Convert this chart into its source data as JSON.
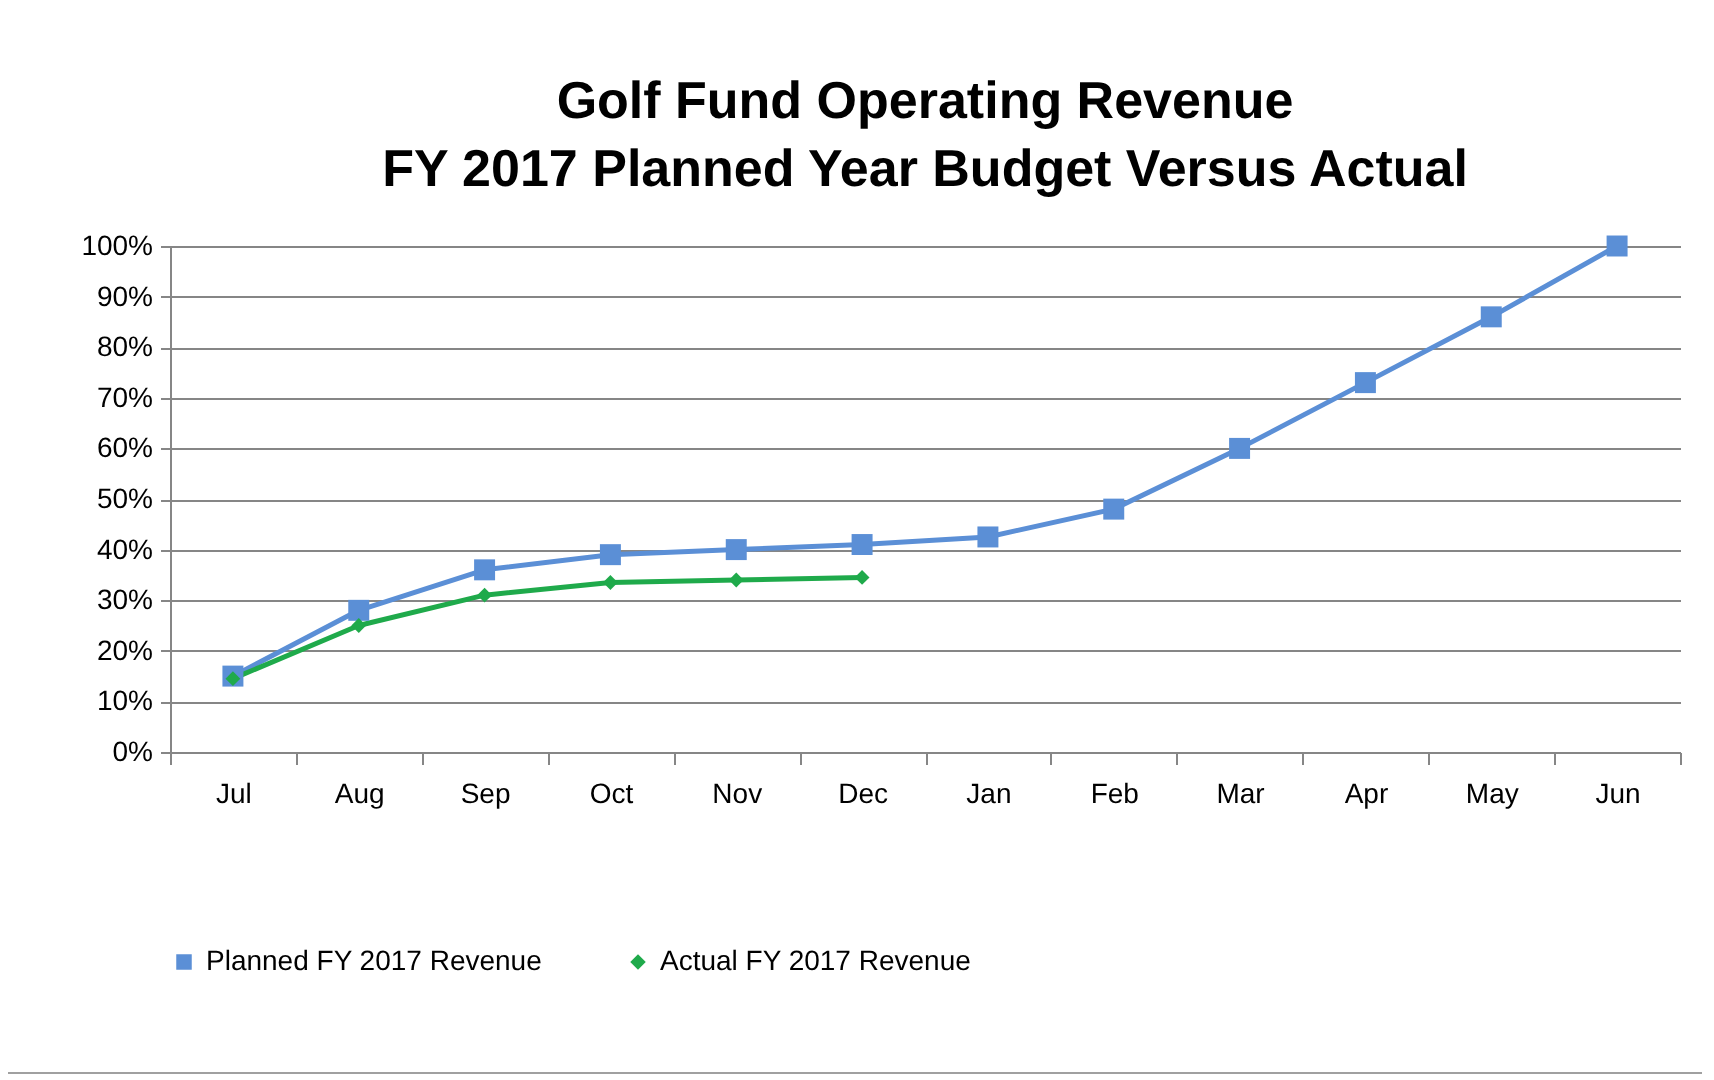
{
  "chart_data": {
    "type": "line",
    "title": [
      "Golf Fund Operating Revenue",
      "FY 2017 Planned Year Budget Versus Actual"
    ],
    "categories": [
      "Jul",
      "Aug",
      "Sep",
      "Oct",
      "Nov",
      "Dec",
      "Jan",
      "Feb",
      "Mar",
      "Apr",
      "May",
      "Jun"
    ],
    "series": [
      {
        "name": "Planned FY 2017 Revenue",
        "color": "#5b8fd6",
        "marker": "square",
        "values": [
          15,
          28,
          36,
          39,
          40,
          41,
          42.5,
          48,
          60,
          73,
          86,
          100
        ]
      },
      {
        "name": "Actual FY 2017 Revenue",
        "color": "#1faa4b",
        "marker": "diamond",
        "values": [
          14.5,
          25,
          31,
          33.5,
          34,
          34.5,
          null,
          null,
          null,
          null,
          null,
          null
        ]
      }
    ],
    "ylim": [
      0,
      100
    ],
    "yticks": [
      {
        "value": 0,
        "label": "0%"
      },
      {
        "value": 10,
        "label": "10%"
      },
      {
        "value": 20,
        "label": "20%"
      },
      {
        "value": 30,
        "label": "30%"
      },
      {
        "value": 40,
        "label": "40%"
      },
      {
        "value": 50,
        "label": "50%"
      },
      {
        "value": 60,
        "label": "60%"
      },
      {
        "value": 70,
        "label": "70%"
      },
      {
        "value": 80,
        "label": "80%"
      },
      {
        "value": 90,
        "label": "90%"
      },
      {
        "value": 100,
        "label": "100%"
      }
    ],
    "grid": "y",
    "legend": "bottom"
  }
}
